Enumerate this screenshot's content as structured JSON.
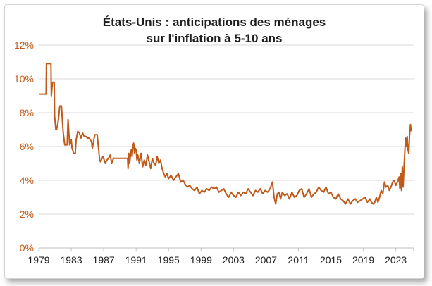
{
  "chart_data": {
    "type": "line",
    "title_line1": "États-Unis : anticipations des ménages",
    "title_line2": "sur l'inflation à 5-10 ans",
    "xlabel": "",
    "ylabel": "",
    "xlim": [
      1979.0,
      2025.2
    ],
    "ylim": [
      0,
      12
    ],
    "y_ticks": [
      {
        "value": 0,
        "label": "0%"
      },
      {
        "value": 2,
        "label": "2%"
      },
      {
        "value": 4,
        "label": "4%"
      },
      {
        "value": 6,
        "label": "6%"
      },
      {
        "value": 8,
        "label": "8%"
      },
      {
        "value": 10,
        "label": "10%"
      },
      {
        "value": 12,
        "label": "12%"
      }
    ],
    "x_ticks": [
      {
        "value": 1979,
        "label": "1979"
      },
      {
        "value": 1983,
        "label": "1983"
      },
      {
        "value": 1987,
        "label": "1987"
      },
      {
        "value": 1991,
        "label": "1991"
      },
      {
        "value": 1995,
        "label": "1995"
      },
      {
        "value": 1999,
        "label": "1999"
      },
      {
        "value": 2003,
        "label": "2003"
      },
      {
        "value": 2007,
        "label": "2007"
      },
      {
        "value": 2011,
        "label": "2011"
      },
      {
        "value": 2015,
        "label": "2015"
      },
      {
        "value": 2019,
        "label": "2019"
      },
      {
        "value": 2023,
        "label": "2023"
      }
    ],
    "grid": true,
    "legend": "none",
    "colors": {
      "line": "#c05a1a",
      "grid": "#d9d9d9",
      "axis": "#bfbfbf"
    },
    "series": [
      {
        "x": [
          1979.0,
          1979.9,
          1979.95,
          1980.5,
          1980.55,
          1980.7,
          1980.9,
          1980.95,
          1981.1,
          1981.2,
          1981.4,
          1981.6,
          1981.8,
          1982.0,
          1982.2,
          1982.5,
          1982.6,
          1982.8,
          1983.0,
          1983.1,
          1983.3,
          1983.5,
          1983.6,
          1983.8,
          1984.0,
          1984.2,
          1984.4,
          1984.6,
          1984.8,
          1985.0,
          1985.2,
          1985.5,
          1985.6,
          1985.9,
          1986.0,
          1986.2,
          1986.5,
          1986.6,
          1986.9,
          1987.0,
          1987.2,
          1987.4,
          1987.6,
          1987.8,
          1988.0,
          1988.2,
          1988.5,
          1989.0,
          1989.5,
          1989.95,
          1990.0,
          1990.1,
          1990.2,
          1990.3,
          1990.4,
          1990.5,
          1990.6,
          1990.7,
          1990.8,
          1990.9,
          1991.0,
          1991.1,
          1991.2,
          1991.4,
          1991.6,
          1991.8,
          1992.0,
          1992.2,
          1992.4,
          1992.6,
          1992.8,
          1993.0,
          1993.2,
          1993.4,
          1993.6,
          1993.8,
          1994.0,
          1994.2,
          1994.4,
          1994.6,
          1994.8,
          1995.0,
          1995.3,
          1995.6,
          1995.9,
          1996.2,
          1996.5,
          1996.8,
          1997.0,
          1997.3,
          1997.6,
          1997.9,
          1998.2,
          1998.5,
          1998.8,
          1999.1,
          1999.4,
          1999.7,
          2000.0,
          2000.3,
          2000.6,
          2000.9,
          2001.2,
          2001.5,
          2001.8,
          2002.1,
          2002.4,
          2002.7,
          2003.0,
          2003.3,
          2003.6,
          2003.9,
          2004.2,
          2004.5,
          2004.8,
          2005.1,
          2005.4,
          2005.7,
          2006.0,
          2006.3,
          2006.6,
          2006.9,
          2007.2,
          2007.5,
          2007.8,
          2008.0,
          2008.2,
          2008.4,
          2008.6,
          2008.8,
          2009.0,
          2009.3,
          2009.6,
          2009.9,
          2010.2,
          2010.5,
          2010.8,
          2011.1,
          2011.4,
          2011.7,
          2012.0,
          2012.3,
          2012.6,
          2012.9,
          2013.2,
          2013.5,
          2013.8,
          2014.1,
          2014.4,
          2014.7,
          2015.0,
          2015.3,
          2015.6,
          2015.9,
          2016.2,
          2016.5,
          2016.8,
          2017.1,
          2017.4,
          2017.7,
          2018.0,
          2018.3,
          2018.6,
          2018.9,
          2019.2,
          2019.5,
          2019.8,
          2020.0,
          2020.2,
          2020.4,
          2020.6,
          2020.8,
          2021.0,
          2021.2,
          2021.4,
          2021.6,
          2021.8,
          2022.0,
          2022.2,
          2022.4,
          2022.6,
          2022.8,
          2023.0,
          2023.2,
          2023.4,
          2023.5,
          2023.6,
          2023.7,
          2023.8,
          2023.9,
          2024.0,
          2024.1,
          2024.2,
          2024.3,
          2024.4,
          2024.5,
          2024.6,
          2024.7,
          2024.8,
          2024.9
        ],
        "y": [
          9.1,
          9.1,
          10.9,
          10.9,
          9.0,
          9.8,
          9.8,
          7.8,
          7.0,
          7.0,
          7.5,
          8.4,
          8.4,
          6.9,
          6.1,
          6.1,
          7.6,
          6.1,
          6.4,
          5.9,
          5.6,
          5.6,
          6.4,
          6.9,
          6.8,
          6.5,
          6.8,
          6.6,
          6.6,
          6.5,
          6.5,
          6.3,
          5.9,
          6.7,
          6.7,
          6.7,
          5.2,
          5.1,
          5.4,
          5.3,
          5.0,
          5.2,
          5.3,
          5.5,
          5.0,
          5.3,
          5.3,
          5.3,
          5.3,
          5.3,
          4.7,
          5.6,
          5.0,
          5.5,
          5.8,
          5.4,
          6.0,
          6.2,
          5.6,
          5.9,
          5.8,
          5.2,
          5.5,
          5.0,
          5.6,
          4.8,
          5.2,
          4.9,
          5.5,
          5.1,
          4.7,
          5.3,
          5.0,
          4.9,
          5.4,
          5.0,
          5.2,
          4.7,
          4.4,
          4.2,
          4.4,
          4.1,
          4.3,
          4.0,
          4.2,
          4.4,
          3.9,
          4.0,
          3.8,
          3.6,
          3.7,
          3.5,
          3.4,
          3.6,
          3.2,
          3.4,
          3.3,
          3.5,
          3.4,
          3.6,
          3.5,
          3.6,
          3.3,
          3.4,
          3.5,
          3.2,
          3.0,
          3.3,
          3.1,
          3.0,
          3.3,
          3.1,
          3.3,
          3.2,
          3.5,
          3.3,
          3.1,
          3.4,
          3.3,
          3.5,
          3.2,
          3.4,
          3.3,
          3.5,
          3.9,
          3.0,
          2.6,
          3.2,
          3.3,
          2.9,
          3.3,
          3.1,
          3.2,
          2.9,
          3.3,
          3.0,
          3.1,
          3.4,
          3.5,
          3.0,
          3.2,
          3.5,
          3.0,
          3.2,
          3.3,
          3.6,
          3.4,
          3.3,
          3.6,
          3.2,
          3.3,
          3.0,
          2.9,
          3.2,
          2.9,
          2.8,
          2.6,
          2.9,
          2.6,
          2.8,
          2.9,
          2.7,
          2.8,
          2.9,
          3.0,
          2.7,
          2.9,
          2.7,
          2.6,
          2.7,
          3.0,
          2.7,
          3.0,
          3.4,
          3.2,
          3.9,
          3.6,
          3.7,
          3.4,
          3.6,
          3.9,
          4.0,
          3.7,
          3.9,
          4.2,
          3.5,
          4.4,
          3.4,
          4.8,
          3.6,
          4.7,
          5.6,
          6.5,
          6.0,
          6.6,
          5.8,
          5.6,
          6.7,
          7.3,
          6.9
        ]
      }
    ]
  }
}
